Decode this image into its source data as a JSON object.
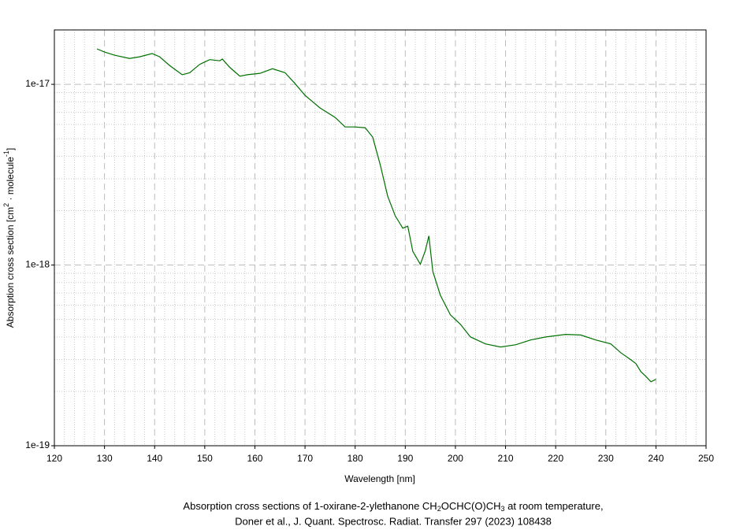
{
  "chart_data": {
    "type": "line",
    "title": [
      "Absorption cross sections of 1-oxirane-2-ylethanone CH",
      "2",
      "OCHC(O)CH",
      "3",
      " at room temperature,"
    ],
    "subtitle": "Doner et al., J. Quant. Spectrosc. Radiat. Transfer 297 (2023) 108438",
    "x_label": "Wavelength [nm]",
    "y_label": [
      "Absorption cross section [cm",
      "2",
      " · molecule",
      "-1",
      "]"
    ],
    "xlim": [
      120,
      250
    ],
    "xticks": [
      120,
      130,
      140,
      150,
      160,
      170,
      180,
      190,
      200,
      210,
      220,
      230,
      240,
      250
    ],
    "ylim": [
      1e-19,
      2e-17
    ],
    "yticks": [
      {
        "value": 1e-19,
        "label": "1e-19"
      },
      {
        "value": 1e-18,
        "label": "1e-18"
      },
      {
        "value": 1e-17,
        "label": "1e-17"
      }
    ],
    "y_scale": "log",
    "grid": true,
    "minor_grid": true,
    "x": [
      128.5,
      130,
      132,
      135,
      137,
      139.5,
      141,
      143,
      145.5,
      147,
      149,
      151,
      153,
      153.5,
      155,
      157,
      158.5,
      161,
      163.5,
      166,
      168,
      170,
      173,
      176,
      178,
      180,
      182,
      183.5,
      185,
      186.5,
      188,
      189.5,
      190.5,
      191.5,
      193,
      194,
      194.7,
      195.5,
      197,
      199,
      201,
      203,
      206,
      209,
      212,
      215,
      218,
      222,
      225,
      228,
      231,
      233,
      235,
      236,
      237,
      238,
      239,
      240
    ],
    "series": [
      {
        "color": "#007000",
        "values": [
          1.57e-17,
          1.51e-17,
          1.45e-17,
          1.39e-17,
          1.42e-17,
          1.48e-17,
          1.42e-17,
          1.27e-17,
          1.13e-17,
          1.16e-17,
          1.29e-17,
          1.37e-17,
          1.35e-17,
          1.38e-17,
          1.24e-17,
          1.11e-17,
          1.13e-17,
          1.15e-17,
          1.22e-17,
          1.16e-17,
          1.01e-17,
          8.69e-18,
          7.4e-18,
          6.56e-18,
          5.81e-18,
          5.81e-18,
          5.75e-18,
          5.1e-18,
          3.59e-18,
          2.4e-18,
          1.87e-18,
          1.6e-18,
          1.64e-18,
          1.19e-18,
          1.01e-18,
          1.2e-18,
          1.45e-18,
          9.2e-19,
          6.8e-19,
          5.3e-19,
          4.7e-19,
          4e-19,
          3.66e-19,
          3.52e-19,
          3.62e-19,
          3.85e-19,
          4e-19,
          4.13e-19,
          4.1e-19,
          3.85e-19,
          3.66e-19,
          3.27e-19,
          2.99e-19,
          2.85e-19,
          2.57e-19,
          2.42e-19,
          2.26e-19,
          2.33e-19
        ]
      }
    ]
  }
}
